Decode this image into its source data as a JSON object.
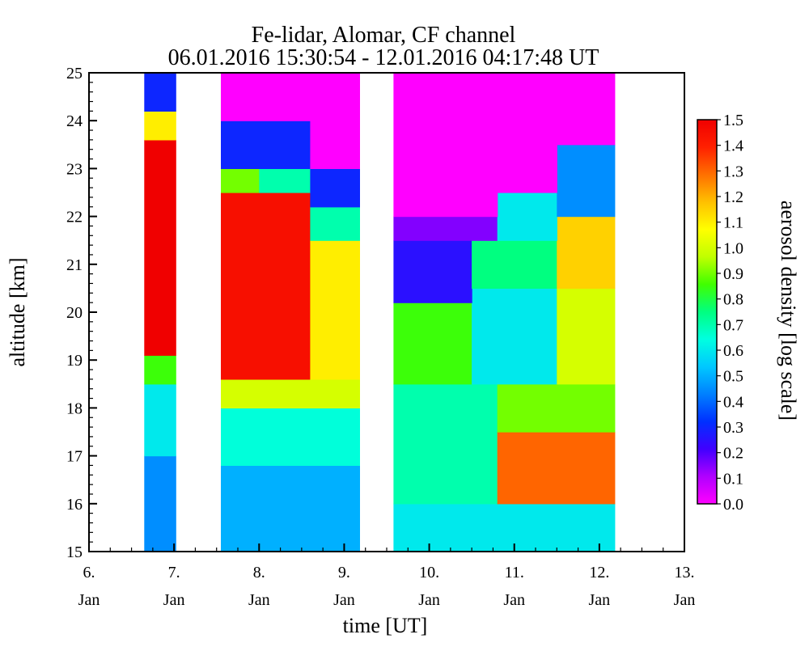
{
  "chart_data": {
    "type": "heatmap",
    "title": "Fe-lidar, Alomar, CF channel",
    "subtitle": "06.01.2016 15:30:54 - 12.01.2016 04:17:48 UT",
    "xlabel": "time [UT]",
    "ylabel": "altitude [km]",
    "colorbar_label": "aerosol density [log scale]",
    "xlim": [
      6,
      13
    ],
    "ylim": [
      15,
      25
    ],
    "x_ticks": [
      {
        "value": 6,
        "label1": "6.",
        "label2": "Jan"
      },
      {
        "value": 7,
        "label1": "7.",
        "label2": "Jan"
      },
      {
        "value": 8,
        "label1": "8.",
        "label2": "Jan"
      },
      {
        "value": 9,
        "label1": "9.",
        "label2": "Jan"
      },
      {
        "value": 10,
        "label1": "10.",
        "label2": "Jan"
      },
      {
        "value": 11,
        "label1": "11.",
        "label2": "Jan"
      },
      {
        "value": 12,
        "label1": "12.",
        "label2": "Jan"
      },
      {
        "value": 13,
        "label1": "13.",
        "label2": "Jan"
      }
    ],
    "y_ticks": [
      15,
      16,
      17,
      18,
      19,
      20,
      21,
      22,
      23,
      24,
      25
    ],
    "colorbar": {
      "range": [
        0.0,
        1.5
      ],
      "ticks": [
        "0.0",
        "0.1",
        "0.2",
        "0.3",
        "0.4",
        "0.5",
        "0.6",
        "0.7",
        "0.8",
        "0.9",
        "1.0",
        "1.1",
        "1.2",
        "1.3",
        "1.4",
        "1.5"
      ],
      "colors": [
        "#ff00ff",
        "#b000ff",
        "#4000ff",
        "#0030ff",
        "#0080ff",
        "#00c8ff",
        "#00ffe0",
        "#00ff80",
        "#40ff00",
        "#c0ff00",
        "#ffff00",
        "#ffc000",
        "#ff7000",
        "#ff2000",
        "#f00000"
      ]
    },
    "observation_periods": [
      {
        "start": 6.65,
        "end": 7.02
      },
      {
        "start": 7.55,
        "end": 9.18
      },
      {
        "start": 9.58,
        "end": 12.18
      }
    ],
    "regions": [
      {
        "x0": 6.65,
        "x1": 7.02,
        "y0": 15.0,
        "y1": 17.0,
        "value": 0.45
      },
      {
        "x0": 6.65,
        "x1": 7.02,
        "y0": 17.0,
        "y1": 18.5,
        "value": 0.6
      },
      {
        "x0": 6.65,
        "x1": 7.02,
        "y0": 18.5,
        "y1": 19.1,
        "value": 0.85
      },
      {
        "x0": 6.65,
        "x1": 7.02,
        "y0": 19.1,
        "y1": 23.6,
        "value": 1.5
      },
      {
        "x0": 6.65,
        "x1": 7.02,
        "y0": 23.6,
        "y1": 24.2,
        "value": 1.1
      },
      {
        "x0": 6.65,
        "x1": 7.02,
        "y0": 24.2,
        "y1": 25.0,
        "value": 0.3
      },
      {
        "x0": 7.55,
        "x1": 9.18,
        "y0": 15.0,
        "y1": 16.8,
        "value": 0.5
      },
      {
        "x0": 7.55,
        "x1": 9.18,
        "y0": 16.8,
        "y1": 18.0,
        "value": 0.65
      },
      {
        "x0": 7.55,
        "x1": 9.18,
        "y0": 18.0,
        "y1": 18.6,
        "value": 1.0
      },
      {
        "x0": 7.55,
        "x1": 8.6,
        "y0": 18.6,
        "y1": 22.5,
        "value": 1.45
      },
      {
        "x0": 8.6,
        "x1": 9.18,
        "y0": 18.6,
        "y1": 21.5,
        "value": 1.1
      },
      {
        "x0": 8.6,
        "x1": 9.18,
        "y0": 21.5,
        "y1": 22.2,
        "value": 0.7
      },
      {
        "x0": 7.55,
        "x1": 8.0,
        "y0": 22.5,
        "y1": 23.6,
        "value": 0.9
      },
      {
        "x0": 8.0,
        "x1": 8.6,
        "y0": 22.5,
        "y1": 23.0,
        "value": 0.7
      },
      {
        "x0": 7.55,
        "x1": 8.6,
        "y0": 23.0,
        "y1": 24.0,
        "value": 0.3
      },
      {
        "x0": 8.6,
        "x1": 9.18,
        "y0": 22.2,
        "y1": 23.0,
        "value": 0.3
      },
      {
        "x0": 7.55,
        "x1": 9.18,
        "y0": 24.0,
        "y1": 25.0,
        "value": 0.0
      },
      {
        "x0": 8.6,
        "x1": 9.18,
        "y0": 23.0,
        "y1": 24.0,
        "value": 0.0
      },
      {
        "x0": 9.58,
        "x1": 12.18,
        "y0": 15.0,
        "y1": 16.0,
        "value": 0.6
      },
      {
        "x0": 9.58,
        "x1": 10.8,
        "y0": 16.0,
        "y1": 18.5,
        "value": 0.7
      },
      {
        "x0": 10.8,
        "x1": 12.18,
        "y0": 16.0,
        "y1": 17.5,
        "value": 1.3
      },
      {
        "x0": 10.8,
        "x1": 12.18,
        "y0": 17.5,
        "y1": 18.5,
        "value": 0.9
      },
      {
        "x0": 9.58,
        "x1": 10.5,
        "y0": 18.5,
        "y1": 20.2,
        "value": 0.85
      },
      {
        "x0": 10.5,
        "x1": 11.5,
        "y0": 18.5,
        "y1": 20.5,
        "value": 0.6
      },
      {
        "x0": 11.5,
        "x1": 12.18,
        "y0": 18.5,
        "y1": 20.5,
        "value": 1.0
      },
      {
        "x0": 9.58,
        "x1": 10.5,
        "y0": 20.2,
        "y1": 21.5,
        "value": 0.25
      },
      {
        "x0": 10.5,
        "x1": 11.5,
        "y0": 20.5,
        "y1": 21.5,
        "value": 0.75
      },
      {
        "x0": 11.5,
        "x1": 12.18,
        "y0": 20.5,
        "y1": 22.0,
        "value": 1.15
      },
      {
        "x0": 9.58,
        "x1": 10.8,
        "y0": 21.5,
        "y1": 22.0,
        "value": 0.15
      },
      {
        "x0": 10.8,
        "x1": 11.5,
        "y0": 21.5,
        "y1": 22.5,
        "value": 0.6
      },
      {
        "x0": 11.5,
        "x1": 12.18,
        "y0": 22.0,
        "y1": 23.5,
        "value": 0.45
      },
      {
        "x0": 9.58,
        "x1": 10.8,
        "y0": 22.0,
        "y1": 25.0,
        "value": 0.0
      },
      {
        "x0": 10.8,
        "x1": 11.5,
        "y0": 22.5,
        "y1": 25.0,
        "value": 0.0
      },
      {
        "x0": 11.5,
        "x1": 12.18,
        "y0": 23.5,
        "y1": 25.0,
        "value": 0.0
      }
    ]
  }
}
